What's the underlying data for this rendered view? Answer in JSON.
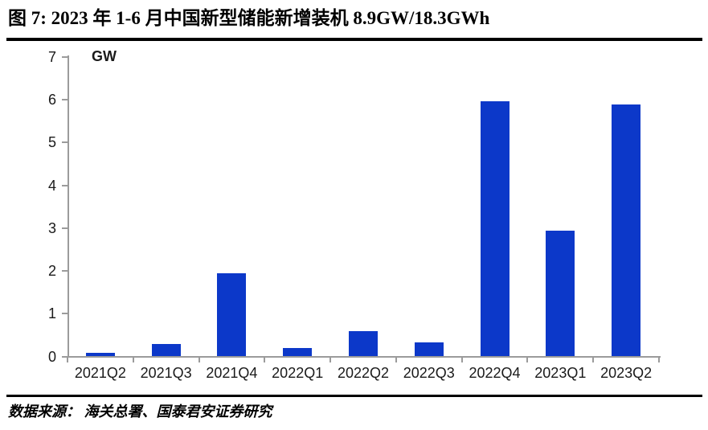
{
  "figure": {
    "title": "图 7:  2023 年 1-6 月中国新型储能新增装机 8.9GW/18.3GWh",
    "source": "数据来源： 海关总署、国泰君安证券研究"
  },
  "chart_data": {
    "type": "bar",
    "title": "",
    "xlabel": "",
    "ylabel": "GW",
    "categories": [
      "2021Q2",
      "2021Q3",
      "2021Q4",
      "2022Q1",
      "2022Q2",
      "2022Q3",
      "2022Q4",
      "2023Q1",
      "2023Q2"
    ],
    "values": [
      0.08,
      0.3,
      1.95,
      0.2,
      0.6,
      0.33,
      5.97,
      2.95,
      5.9
    ],
    "ylim": [
      0,
      7
    ],
    "ytick_step": 1,
    "yticks": [
      0,
      1,
      2,
      3,
      4,
      5,
      6,
      7
    ],
    "grid": false,
    "legend": "none",
    "bar_color": "#0c38c9",
    "axis_color": "#9b9b9b",
    "text_color": "#000000"
  }
}
